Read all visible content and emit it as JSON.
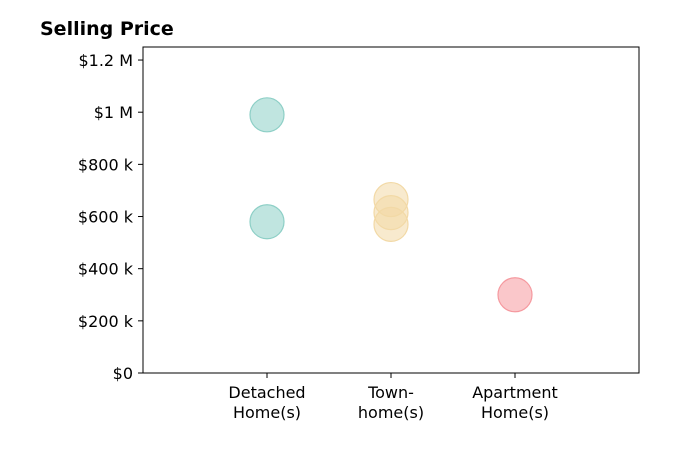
{
  "chart_data": {
    "type": "scatter",
    "title": "Selling Price",
    "xlabel": "",
    "ylabel": "",
    "categories": [
      "Detached\nHome(s)",
      "Town-\nhome(s)",
      "Apartment\nHome(s)"
    ],
    "xlim": [
      -1,
      3
    ],
    "ylim": [
      0,
      1250000
    ],
    "yticks": [
      0,
      200000,
      400000,
      600000,
      800000,
      1000000,
      1200000
    ],
    "ytick_labels": [
      "$0",
      "$200 k",
      "$400 k",
      "$600 k",
      "$800 k",
      "$1 M",
      "$1.2 M"
    ],
    "grid": false,
    "legend": "none",
    "series": [
      {
        "category": 0,
        "color": "#8dcfc6",
        "values": [
          990000,
          580000
        ]
      },
      {
        "category": 1,
        "color": "#f2d9a6",
        "values": [
          665000,
          615000,
          570000
        ]
      },
      {
        "category": 2,
        "color": "#f5999f",
        "values": [
          300000
        ]
      }
    ]
  }
}
